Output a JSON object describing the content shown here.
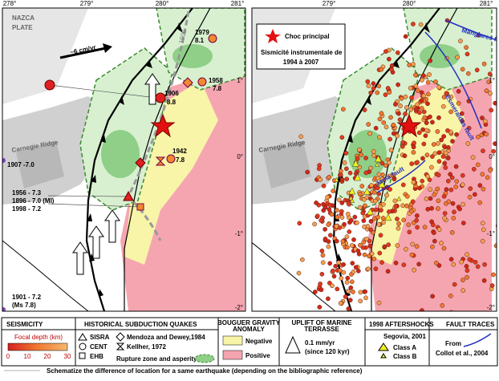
{
  "map": {
    "lon_labels_left": [
      "278°",
      "279°",
      "280°",
      "281°"
    ],
    "lon_labels_right": [
      "279°",
      "280°",
      "281°"
    ],
    "lat_labels": [
      "1°",
      "0°",
      "-1°",
      "-2°"
    ],
    "left_panel": {
      "plate": [
        "NAZCA",
        "PLATE"
      ],
      "velocity": "~6 cm/yr",
      "rupture_year": "1906",
      "ridge": "Carnegie Ridge",
      "quakes": [
        {
          "year": "1979",
          "mag": "8.1"
        },
        {
          "year": "1958",
          "mag": "7.8"
        },
        {
          "year": "1906",
          "mag": "8.8"
        },
        {
          "year": "1942",
          "mag": "7.8"
        }
      ],
      "side_notes": [
        "1907 -7.0",
        "1956 - 7.3",
        "1896 - 7.0 (MI)",
        "1998 - 7.2",
        "1901 - 7.2",
        "(Ms 7.8)"
      ]
    },
    "right_panel": {
      "main_shock": "Choc principal",
      "title": [
        "Sismicité instrumentale de",
        "1994 à 2007"
      ],
      "ridge": "Carnegie Ridge",
      "faults": [
        "Manglares fault",
        "Esmeraldas fault",
        "Jama fault"
      ]
    },
    "legend": {
      "seismicity": {
        "title": "SEISMICITY",
        "depth": "Focal depth (km)",
        "ticks": [
          "0",
          "10",
          "20",
          "30"
        ]
      },
      "historical": {
        "title": "HISTORICAL SUBDUCTION QUAKES",
        "items": [
          "SISRA",
          "CENT",
          "EHB",
          "Mendoza and Dewey,1984",
          "Kellher, 1972",
          "Rupture zone and asperity"
        ]
      },
      "bouguer": {
        "title": [
          "BOUGUER GRAVITY",
          "ANOMALY"
        ],
        "items": [
          "Negative",
          "Positive"
        ]
      },
      "uplift": {
        "title": [
          "UPLIFT OF MARINE",
          "TERRASSE"
        ],
        "items": [
          "0.1 mm/yr",
          "(since 120 kyr)"
        ]
      },
      "aftershocks": {
        "title": "1998 AFTERSHOCKS",
        "source": "Segovia, 2001",
        "items": [
          "Class A",
          "Class B"
        ]
      },
      "faults": {
        "title": "FAULT TRACES",
        "items": [
          "From",
          "Collot et al., 2004"
        ]
      },
      "note": "Schematize the difference of location for a same earthquake (depending on the bibliographic reference)"
    }
  }
}
